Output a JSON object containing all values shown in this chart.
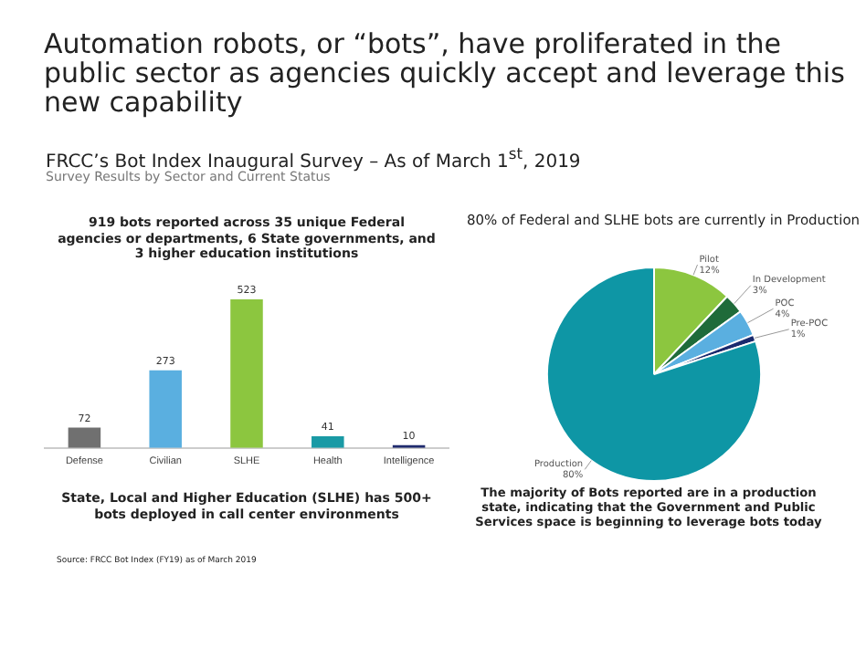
{
  "chart_data": [
    {
      "type": "bar",
      "title": "Automation robots, or “bots”, have proliferated in the public sector as agencies quickly accept and leverage this new capability",
      "subtitle": "FRCC’s Bot Index Inaugural Survey – As of March 1$^{st}$, 2019",
      "annotations": [
        "Survey Results by Sector and Current Status",
        "919 bots reported across 35 unique Federal agencies or departments, 6 State governments, and 3 higher education institutions",
        "State, Local and Higher Education (SLHE) has 500+ bots deployed in call center environments",
        "Source:  FRCC Bot Index (FY19) as of March 2019"
      ],
      "categories": [
        "Defense",
        "Civilian",
        "SLHE",
        "Health",
        "Intelligence"
      ],
      "values": [
        72,
        273,
        523,
        41,
        10
      ],
      "colors": [
        "#707070",
        "#5aafe0",
        "#8cc63f",
        "#1a9aa5",
        "#1f2a6e"
      ],
      "data_labels": true,
      "legend": false,
      "grid": false
    },
    {
      "type": "pie",
      "title": "80% of Federal and SLHE bots are currently in Production",
      "annotations": [
        "The majority of Bots reported are in a production state, indicating that the Government and Public Services space is beginning to leverage bots today"
      ],
      "categories": [
        "Pilot",
        "In Development",
        "POC",
        "Pre-POC",
        "Production"
      ],
      "values": [
        12,
        3,
        4,
        1,
        80
      ],
      "value_labels": [
        "12%",
        "3%",
        "4%",
        "1%",
        "80%"
      ],
      "colors": [
        "#8cc63f",
        "#1f6b3a",
        "#5aafe0",
        "#1a2a6e",
        "#0e96a5"
      ],
      "legend": false
    }
  ]
}
